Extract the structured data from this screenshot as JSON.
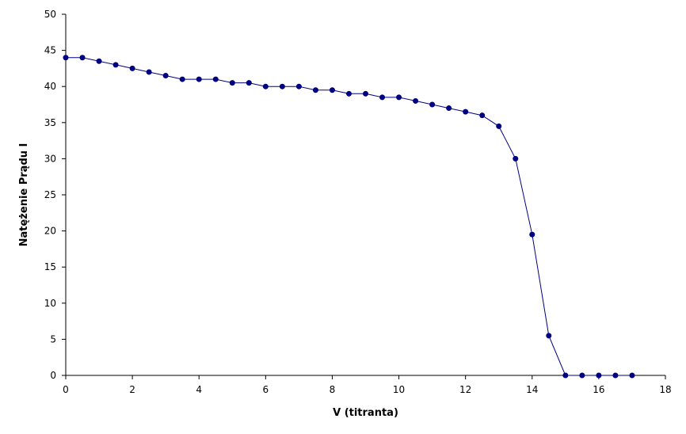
{
  "chart_data": {
    "type": "scatter",
    "title": "",
    "xlabel": "V (titranta)",
    "ylabel": "Natężenie Prądu I",
    "xlim": [
      0,
      18
    ],
    "ylim": [
      0,
      50
    ],
    "xticks": [
      0,
      2,
      4,
      6,
      8,
      10,
      12,
      14,
      16,
      18
    ],
    "yticks": [
      0,
      5,
      10,
      15,
      20,
      25,
      30,
      35,
      40,
      45,
      50
    ],
    "grid": false,
    "legend": "none",
    "line_color": "#000080",
    "marker_color": "#000080",
    "series": [
      {
        "x": [
          0,
          0.5,
          1,
          1.5,
          2,
          2.5,
          3,
          3.5,
          4,
          4.5,
          5,
          5.5,
          6,
          6.5,
          7,
          7.5,
          8,
          8.5,
          9,
          9.5,
          10,
          10.5,
          11,
          11.5,
          12,
          12.5,
          13,
          13.5,
          14,
          14.5,
          15,
          15.5,
          16,
          16.5,
          17
        ],
        "y": [
          44,
          44,
          43.5,
          43,
          42.5,
          42,
          41.5,
          41,
          41,
          41,
          40.5,
          40.5,
          40,
          40,
          40,
          39.5,
          39.5,
          39,
          39,
          38.5,
          38.5,
          38,
          37.5,
          37,
          36.5,
          36,
          34.5,
          30,
          19.5,
          5.5,
          0,
          0,
          0,
          0,
          0
        ]
      }
    ]
  }
}
